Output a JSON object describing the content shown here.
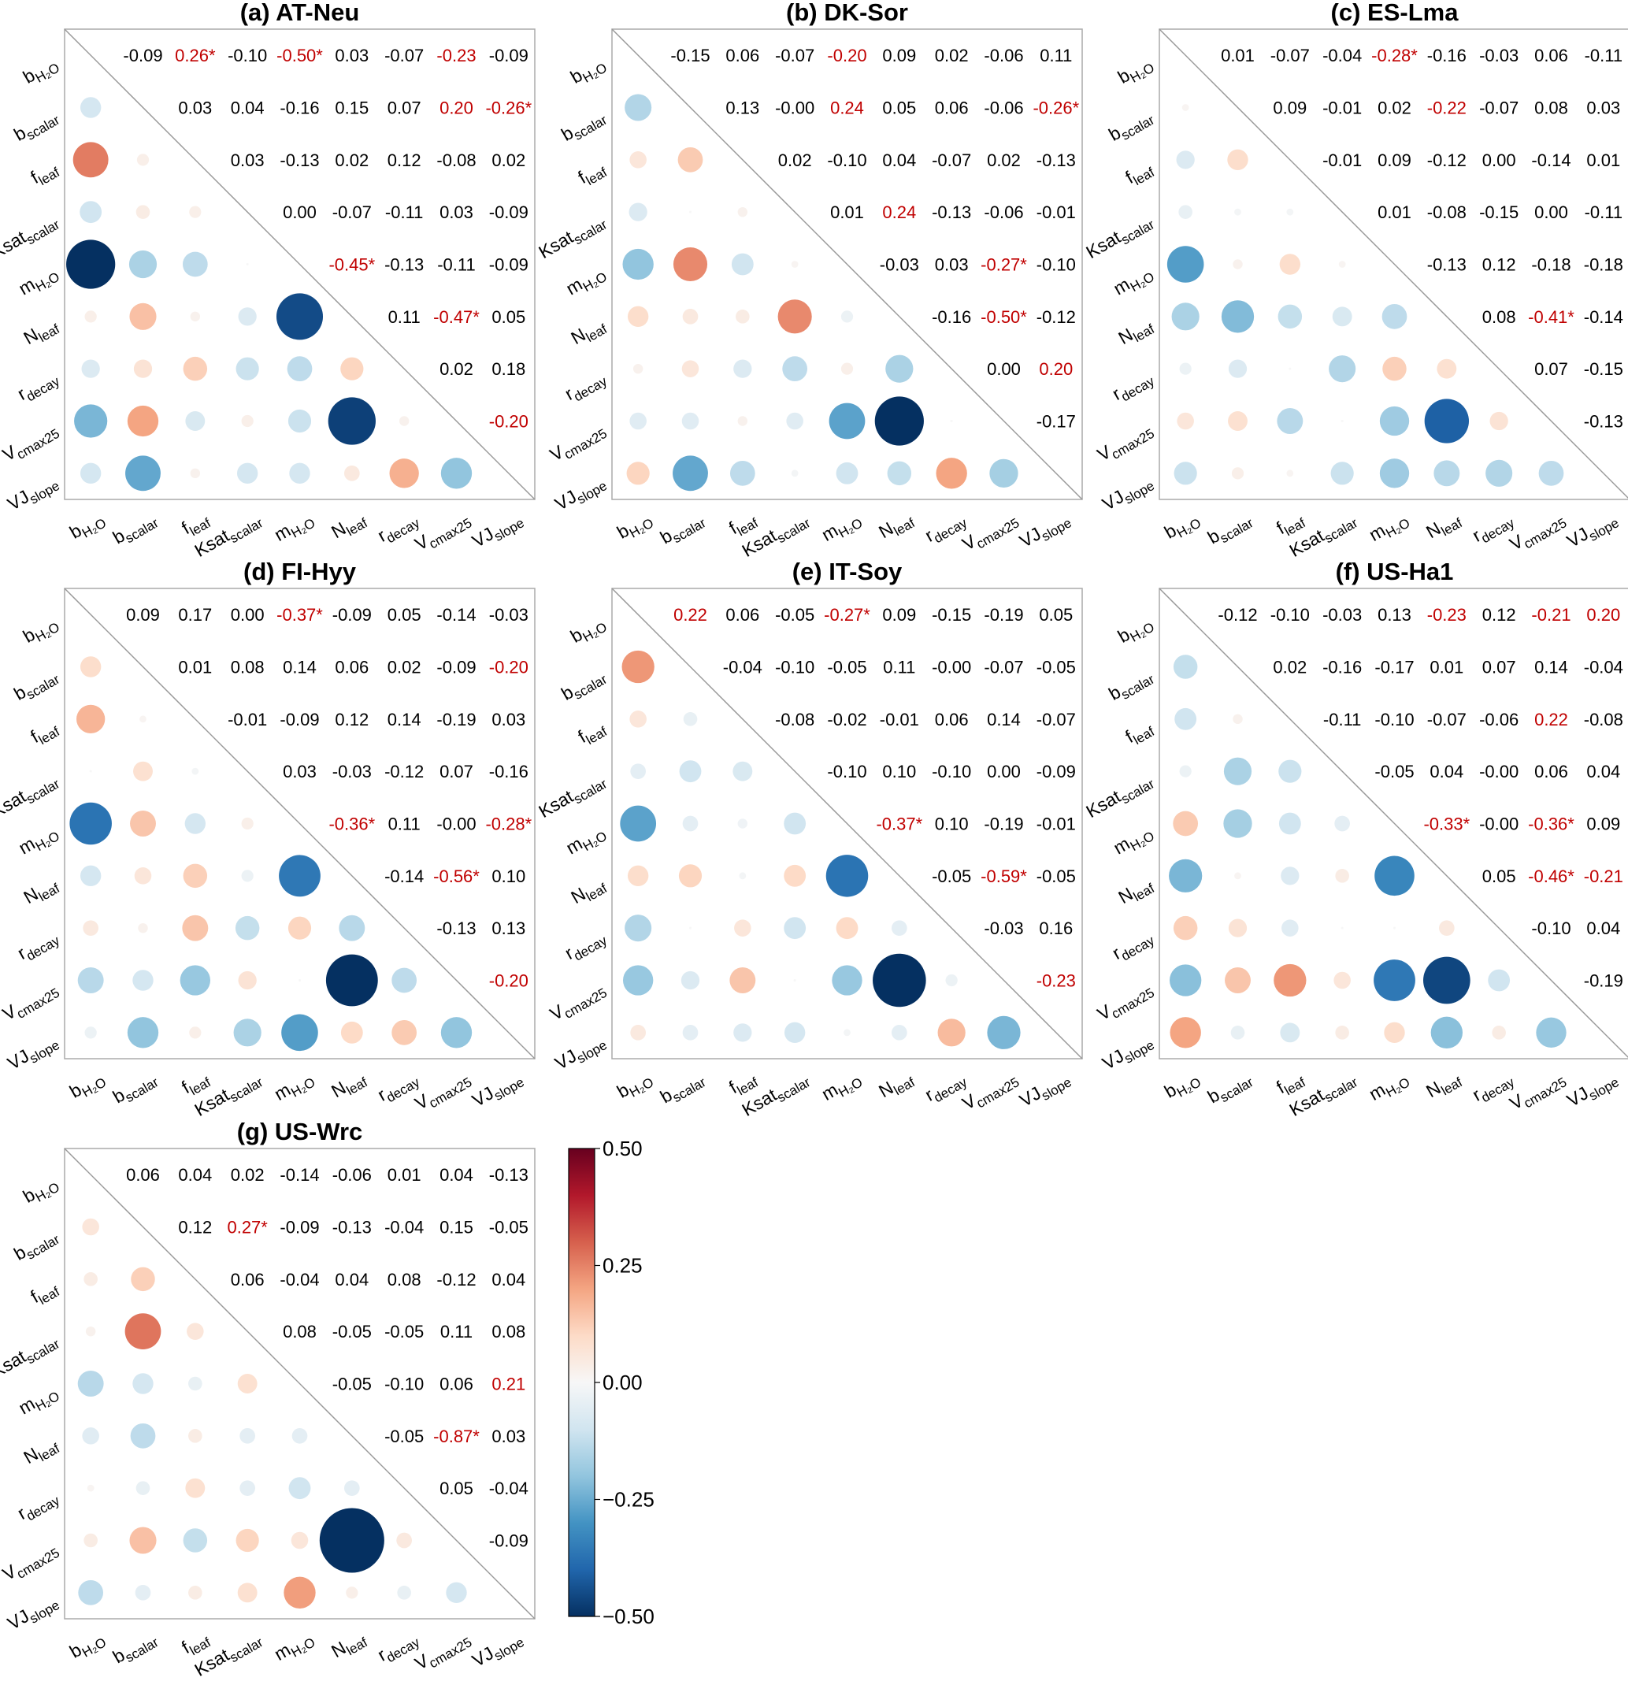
{
  "chart_data": {
    "type": "heatmap",
    "description_kind": "correlation matrices (upper triangle: coefficient text; lower triangle: circles sized/colored by coefficient)",
    "variables": [
      {
        "base": "b",
        "sub": "H₂O"
      },
      {
        "base": "b",
        "sub": "scalar"
      },
      {
        "base": "f",
        "sub": "leaf"
      },
      {
        "base": "Ksat",
        "sub": "scalar"
      },
      {
        "base": "m",
        "sub": "H₂O"
      },
      {
        "base": "N",
        "sub": "leaf"
      },
      {
        "base": "r",
        "sub": "decay"
      },
      {
        "base": "V",
        "sub": "cmax25"
      },
      {
        "base": "VJ",
        "sub": "slope"
      }
    ],
    "highlight_threshold": 0.2,
    "colors": {
      "highlight": "#c00000",
      "normal": "#000000",
      "frame": "#aaaaaa"
    },
    "colorbar": {
      "range": [
        -0.5,
        0.5
      ],
      "ticks": [
        "0.50",
        "0.25",
        "0.00",
        "−0.25",
        "−0.50"
      ],
      "tick_values": [
        0.5,
        0.25,
        0,
        -0.25,
        -0.5
      ]
    },
    "panels": [
      {
        "title": "(a) AT-Neu",
        "upper": [
          [
            "-0.09",
            "0.26*",
            "-0.10",
            "-0.50*",
            "0.03",
            "-0.07",
            "-0.23",
            "-0.09"
          ],
          [
            "0.03",
            "0.04",
            "-0.16",
            "0.15",
            "0.07",
            "0.20",
            "-0.26*"
          ],
          [
            "0.03",
            "-0.13",
            "0.02",
            "0.12",
            "-0.08",
            "0.02"
          ],
          [
            "0.00",
            "-0.07",
            "-0.11",
            "0.03",
            "-0.09"
          ],
          [
            "-0.45*",
            "-0.13",
            "-0.11",
            "-0.09"
          ],
          [
            "0.11",
            "-0.47*",
            "0.05"
          ],
          [
            "0.02",
            "0.18"
          ],
          [
            "-0.20"
          ]
        ]
      },
      {
        "title": "(b) DK-Sor",
        "upper": [
          [
            "-0.15",
            "0.06",
            "-0.07",
            "-0.20",
            "0.09",
            "0.02",
            "-0.06",
            "0.11"
          ],
          [
            "0.13",
            "-0.00",
            "0.24",
            "0.05",
            "0.06",
            "-0.06",
            "-0.26*"
          ],
          [
            "0.02",
            "-0.10",
            "0.04",
            "-0.07",
            "0.02",
            "-0.13"
          ],
          [
            "0.01",
            "0.24",
            "-0.13",
            "-0.06",
            "-0.01"
          ],
          [
            "-0.03",
            "0.03",
            "-0.27*",
            "-0.10"
          ],
          [
            "-0.16",
            "-0.50*",
            "-0.12"
          ],
          [
            "0.00",
            "0.20"
          ],
          [
            "-0.17"
          ]
        ]
      },
      {
        "title": "(c) ES-Lma",
        "upper": [
          [
            "0.01",
            "-0.07",
            "-0.04",
            "-0.28*",
            "-0.16",
            "-0.03",
            "0.06",
            "-0.11"
          ],
          [
            "0.09",
            "-0.01",
            "0.02",
            "-0.22",
            "-0.07",
            "0.08",
            "0.03"
          ],
          [
            "-0.01",
            "0.09",
            "-0.12",
            "0.00",
            "-0.14",
            "0.01"
          ],
          [
            "0.01",
            "-0.08",
            "-0.15",
            "0.00",
            "-0.11"
          ],
          [
            "-0.13",
            "0.12",
            "-0.18",
            "-0.18"
          ],
          [
            "0.08",
            "-0.41*",
            "-0.14"
          ],
          [
            "0.07",
            "-0.15"
          ],
          [
            "-0.13"
          ]
        ]
      },
      {
        "title": "(d) FI-Hyy",
        "upper": [
          [
            "0.09",
            "0.17",
            "0.00",
            "-0.37*",
            "-0.09",
            "0.05",
            "-0.14",
            "-0.03"
          ],
          [
            "0.01",
            "0.08",
            "0.14",
            "0.06",
            "0.02",
            "-0.09",
            "-0.20"
          ],
          [
            "-0.01",
            "-0.09",
            "0.12",
            "0.14",
            "-0.19",
            "0.03"
          ],
          [
            "0.03",
            "-0.03",
            "-0.12",
            "0.07",
            "-0.16"
          ],
          [
            "-0.36*",
            "0.11",
            "-0.00",
            "-0.28*"
          ],
          [
            "-0.14",
            "-0.56*",
            "0.10"
          ],
          [
            "-0.13",
            "0.13"
          ],
          [
            "-0.20"
          ]
        ]
      },
      {
        "title": "(e) IT-Soy",
        "upper": [
          [
            "0.22",
            "0.06",
            "-0.05",
            "-0.27*",
            "0.09",
            "-0.15",
            "-0.19",
            "0.05"
          ],
          [
            "-0.04",
            "-0.10",
            "-0.05",
            "0.11",
            "-0.00",
            "-0.07",
            "-0.05"
          ],
          [
            "-0.08",
            "-0.02",
            "-0.01",
            "0.06",
            "0.14",
            "-0.07"
          ],
          [
            "-0.10",
            "0.10",
            "-0.10",
            "0.00",
            "-0.09"
          ],
          [
            "-0.37*",
            "0.10",
            "-0.19",
            "-0.01"
          ],
          [
            "-0.05",
            "-0.59*",
            "-0.05"
          ],
          [
            "-0.03",
            "0.16"
          ],
          [
            "-0.23"
          ]
        ]
      },
      {
        "title": "(f) US-Ha1",
        "upper": [
          [
            "-0.12",
            "-0.10",
            "-0.03",
            "0.13",
            "-0.23",
            "0.12",
            "-0.21",
            "0.20"
          ],
          [
            "0.02",
            "-0.16",
            "-0.17",
            "0.01",
            "0.07",
            "0.14",
            "-0.04"
          ],
          [
            "-0.11",
            "-0.10",
            "-0.07",
            "-0.06",
            "0.22",
            "-0.08"
          ],
          [
            "-0.05",
            "0.04",
            "-0.00",
            "0.06",
            "0.04"
          ],
          [
            "-0.33*",
            "-0.00",
            "-0.36*",
            "0.09"
          ],
          [
            "0.05",
            "-0.46*",
            "-0.21"
          ],
          [
            "-0.10",
            "0.04"
          ],
          [
            "-0.19"
          ]
        ]
      },
      {
        "title": "(g) US-Wrc",
        "upper": [
          [
            "0.06",
            "0.04",
            "0.02",
            "-0.14",
            "-0.06",
            "0.01",
            "0.04",
            "-0.13"
          ],
          [
            "0.12",
            "0.27*",
            "-0.09",
            "-0.13",
            "-0.04",
            "0.15",
            "-0.05"
          ],
          [
            "0.06",
            "-0.04",
            "0.04",
            "0.08",
            "-0.12",
            "0.04"
          ],
          [
            "0.08",
            "-0.05",
            "-0.05",
            "0.11",
            "0.08"
          ],
          [
            "-0.05",
            "-0.10",
            "0.06",
            "0.21"
          ],
          [
            "-0.05",
            "-0.87*",
            "0.03"
          ],
          [
            "0.05",
            "-0.04"
          ],
          [
            "-0.09"
          ]
        ]
      }
    ]
  }
}
